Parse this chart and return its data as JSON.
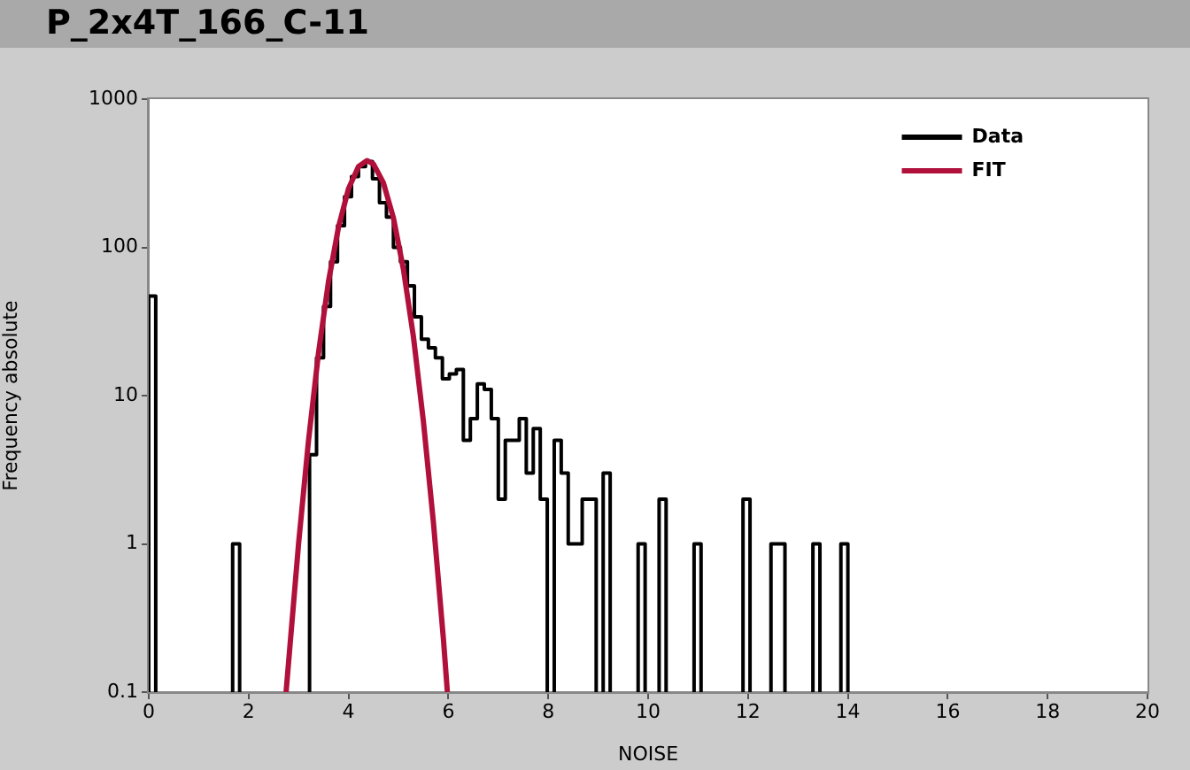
{
  "chart_data": {
    "type": "histogram",
    "title": "P_2x4T_166_C-11",
    "xlabel": "NOISE",
    "ylabel": "Frequency absolute",
    "xlim": [
      0,
      20
    ],
    "xticks": [
      0,
      2,
      4,
      6,
      8,
      10,
      12,
      14,
      16,
      18,
      20
    ],
    "ylim": [
      0.1,
      1000
    ],
    "yticks": [
      0.1,
      1,
      10,
      100,
      1000
    ],
    "log": "y",
    "grid": false,
    "legend": "top right",
    "series": [
      {
        "name": "Data",
        "color": "#000000",
        "bins": [
          0,
          0.14,
          0.28,
          0.42,
          0.56,
          0.7,
          0.84,
          0.98,
          1.12,
          1.26,
          1.4,
          1.54,
          1.68,
          1.82,
          1.96,
          2.1,
          2.24,
          2.38,
          2.52,
          2.66,
          2.8,
          2.94,
          3.08,
          3.22,
          3.36,
          3.5,
          3.64,
          3.78,
          3.92,
          4.06,
          4.2,
          4.34,
          4.48,
          4.62,
          4.76,
          4.9,
          5.04,
          5.18,
          5.32,
          5.46,
          5.6,
          5.74,
          5.88,
          6.02,
          6.16,
          6.3,
          6.44,
          6.58,
          6.72,
          6.86,
          7,
          7.14,
          7.28,
          7.42,
          7.56,
          7.7,
          7.84,
          7.98,
          8.12,
          8.26,
          8.4,
          8.54,
          8.68,
          8.82,
          8.96,
          9.1,
          9.24,
          9.38,
          9.52,
          9.66,
          9.8,
          9.94,
          10.08,
          10.22,
          10.36,
          10.5,
          10.64,
          10.78,
          10.92,
          11.06,
          11.2,
          11.34,
          11.48,
          11.62,
          11.76,
          11.9,
          12.04,
          12.18,
          12.32,
          12.46,
          12.6,
          12.74,
          12.88,
          13.02,
          13.16,
          13.3,
          13.44,
          13.58,
          13.72,
          13.86,
          14
        ],
        "values": [
          47,
          null,
          null,
          null,
          null,
          null,
          null,
          null,
          null,
          null,
          null,
          null,
          1,
          null,
          null,
          null,
          null,
          null,
          null,
          null,
          null,
          null,
          null,
          4,
          18,
          40,
          80,
          140,
          220,
          300,
          350,
          380,
          290,
          200,
          160,
          100,
          80,
          55,
          34,
          24,
          21,
          18,
          13,
          14,
          15,
          5,
          7,
          12,
          11,
          7,
          2,
          5,
          5,
          7,
          3,
          6,
          2,
          null,
          5,
          3,
          1,
          1,
          2,
          2,
          null,
          3,
          null,
          null,
          null,
          null,
          1,
          null,
          null,
          2,
          null,
          null,
          null,
          null,
          1,
          null,
          null,
          null,
          null,
          null,
          null,
          2,
          null,
          null,
          null,
          1,
          1,
          null,
          null,
          null,
          null,
          1,
          null,
          null,
          null,
          1
        ]
      },
      {
        "name": "FIT",
        "type": "line",
        "color": "#b0103a",
        "x": [
          2.75,
          3.0,
          3.2,
          3.4,
          3.6,
          3.8,
          4.0,
          4.2,
          4.37,
          4.5,
          4.7,
          4.9,
          5.1,
          5.3,
          5.5,
          5.7,
          5.9,
          5.98
        ],
        "values": [
          0.1,
          1.0,
          5.0,
          19.5,
          59,
          137,
          249,
          351,
          385,
          365,
          272,
          158,
          71,
          25,
          6.7,
          1.4,
          0.23,
          0.1
        ]
      }
    ]
  }
}
